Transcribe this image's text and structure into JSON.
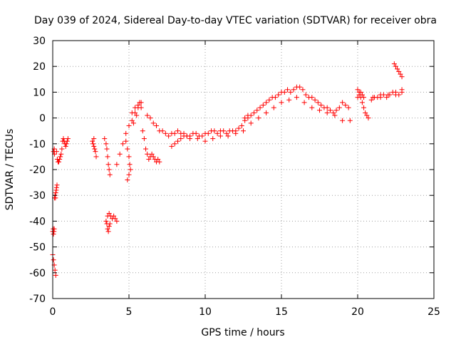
{
  "chart_data": {
    "type": "scatter",
    "title": "Day 039 of 2024, Sidereal Day-to-day VTEC variation (SDTVAR) for receiver obra",
    "xlabel": "GPS time / hours",
    "ylabel": "SDTVAR / TECUs",
    "xlim": [
      0,
      25
    ],
    "ylim": [
      -70,
      30
    ],
    "xticks": [
      0,
      5,
      10,
      15,
      20,
      25
    ],
    "yticks": [
      -70,
      -60,
      -50,
      -40,
      -30,
      -20,
      -10,
      0,
      10,
      20,
      30
    ],
    "grid": true,
    "marker": "+",
    "color": "#ff0000",
    "series": [
      {
        "name": "SDTVAR",
        "x": [
          0.0,
          0.05,
          0.1,
          0.15,
          0.2,
          0.25,
          0.3,
          0.35,
          0.4,
          0.45,
          0.5,
          0.55,
          0.0,
          0.03,
          0.05,
          0.08,
          0.1,
          0.12,
          0.15,
          0.18,
          0.2,
          0.23,
          0.25,
          0.28,
          0.05,
          0.1,
          0.12,
          0.6,
          0.65,
          0.7,
          0.75,
          0.8,
          0.85,
          0.9,
          0.95,
          1.0,
          2.6,
          2.65,
          2.7,
          2.75,
          2.8,
          2.85,
          2.7,
          3.4,
          3.5,
          3.55,
          3.6,
          3.65,
          3.7,
          3.75,
          3.5,
          3.55,
          3.6,
          3.65,
          3.7,
          3.75,
          3.6,
          3.7,
          3.8,
          3.9,
          4.0,
          4.1,
          4.2,
          4.2,
          4.4,
          4.6,
          4.8,
          5.0,
          5.2,
          5.4,
          5.6,
          5.8,
          4.8,
          4.9,
          5.0,
          5.1,
          4.9,
          5.0,
          5.05,
          5.9,
          6.0,
          6.1,
          6.2,
          6.3,
          6.4,
          6.5,
          6.6,
          6.7,
          6.8,
          6.9,
          7.0,
          6.2,
          6.4,
          6.6,
          6.8,
          7.0,
          7.2,
          7.4,
          7.6,
          7.8,
          8.0,
          8.2,
          8.4,
          8.6,
          8.8,
          9.0,
          9.2,
          9.4,
          9.6,
          9.8,
          10.0,
          10.2,
          10.4,
          10.6,
          10.8,
          11.0,
          11.2,
          11.4,
          11.6,
          11.8,
          12.0,
          12.2,
          12.4,
          12.6,
          12.8,
          7.8,
          8.0,
          8.2,
          8.4,
          8.6,
          8.8,
          9.0,
          9.5,
          10.0,
          10.5,
          11.0,
          11.5,
          12.0,
          12.5,
          12.6,
          12.8,
          13.0,
          13.2,
          13.4,
          13.6,
          13.8,
          14.0,
          14.2,
          14.4,
          14.6,
          14.8,
          15.0,
          15.2,
          15.4,
          15.6,
          15.8,
          16.0,
          16.2,
          16.4,
          16.6,
          16.8,
          17.0,
          17.2,
          17.4,
          17.6,
          17.8,
          18.0,
          18.2,
          18.4,
          18.6,
          18.8,
          19.0,
          19.2,
          19.4,
          13.0,
          13.5,
          14.0,
          14.5,
          15.0,
          15.5,
          16.0,
          16.5,
          17.0,
          17.5,
          18.0,
          18.5,
          19.0,
          19.5,
          20.0,
          20.1,
          20.2,
          20.3,
          20.4,
          20.5,
          20.6,
          20.7,
          20.0,
          20.1,
          20.2,
          20.3,
          20.4,
          20.9,
          21.1,
          21.3,
          21.5,
          21.7,
          21.9,
          22.1,
          22.3,
          22.5,
          22.7,
          22.9,
          21.0,
          21.5,
          22.0,
          22.5,
          22.9,
          22.4,
          22.5,
          22.6,
          22.7,
          22.8,
          22.9,
          5.2,
          5.4,
          5.6,
          5.7,
          5.8,
          5.5,
          5.3
        ],
        "y": [
          -53,
          -55,
          -57,
          -59,
          -61,
          -13,
          -16,
          -17,
          -17,
          -16,
          -15,
          -14,
          -44,
          -43,
          -45,
          -44,
          -43,
          -31,
          -30,
          -31,
          -29,
          -28,
          -27,
          -26,
          -13,
          -12,
          -14,
          -12,
          -9,
          -8,
          -9,
          -10,
          -11,
          -10,
          -9,
          -8,
          -9,
          -10,
          -11,
          -12,
          -13,
          -15,
          -8,
          -8,
          -10,
          -12,
          -15,
          -18,
          -20,
          -22,
          -40,
          -41,
          -43,
          -44,
          -42,
          -41,
          -38,
          -37,
          -38,
          -39,
          -38,
          -39,
          -40,
          -18,
          -14,
          -10,
          -6,
          -3,
          -1,
          2,
          4,
          6,
          -9,
          -12,
          -15,
          -20,
          -24,
          -22,
          -18,
          -5,
          -8,
          -12,
          -14,
          -16,
          -15,
          -14,
          -15,
          -16,
          -17,
          -16,
          -17,
          1,
          0,
          -2,
          -3,
          -5,
          -5,
          -6,
          -7,
          -6,
          -6,
          -5,
          -6,
          -6,
          -7,
          -7,
          -6,
          -6,
          -7,
          -7,
          -6,
          -6,
          -5,
          -5,
          -6,
          -5,
          -5,
          -6,
          -5,
          -5,
          -5,
          -4,
          -3,
          -1,
          0,
          -11,
          -10,
          -9,
          -8,
          -7,
          -7,
          -8,
          -8,
          -9,
          -8,
          -7,
          -7,
          -6,
          -5,
          0,
          1,
          1,
          2,
          3,
          4,
          5,
          6,
          7,
          8,
          8,
          9,
          10,
          10,
          11,
          10,
          11,
          12,
          12,
          11,
          9,
          8,
          8,
          7,
          6,
          5,
          4,
          4,
          3,
          2,
          3,
          4,
          6,
          5,
          4,
          -2,
          0,
          2,
          4,
          6,
          7,
          8,
          6,
          4,
          3,
          2,
          1,
          -1,
          -1,
          11,
          10,
          8,
          6,
          4,
          2,
          1,
          0,
          8,
          9,
          10,
          9,
          8,
          7,
          8,
          8,
          9,
          9,
          8,
          9,
          10,
          10,
          9,
          11,
          8,
          8,
          9,
          9,
          10,
          21,
          20,
          19,
          18,
          17,
          16,
          2,
          4,
          5,
          6,
          4,
          1,
          -2
        ]
      }
    ]
  }
}
